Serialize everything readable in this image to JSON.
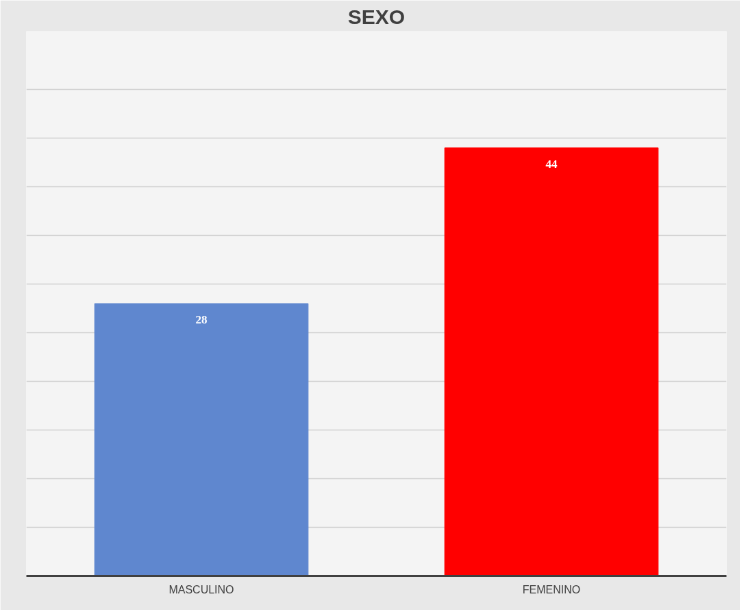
{
  "chart_data": {
    "type": "bar",
    "title": "SEXO",
    "categories": [
      "MASCULINO",
      "FEMENINO"
    ],
    "values": [
      28,
      44
    ],
    "colors": [
      "#5f87cf",
      "#ff0000"
    ],
    "ylim": [
      0,
      50
    ],
    "yticks": [
      {
        "value": 0,
        "label": null
      },
      {
        "value": 5,
        "label": null
      },
      {
        "value": 10,
        "label": null
      },
      {
        "value": 15,
        "label": null
      },
      {
        "value": 20,
        "label": null
      },
      {
        "value": 25,
        "label": null
      },
      {
        "value": 30,
        "label": null
      },
      {
        "value": 35,
        "label": null
      },
      {
        "value": 40,
        "label": null
      },
      {
        "value": 45,
        "label": null
      },
      {
        "value": 50,
        "label": null
      }
    ],
    "grid": "y",
    "tick_labels": "x",
    "data_labels": true
  }
}
